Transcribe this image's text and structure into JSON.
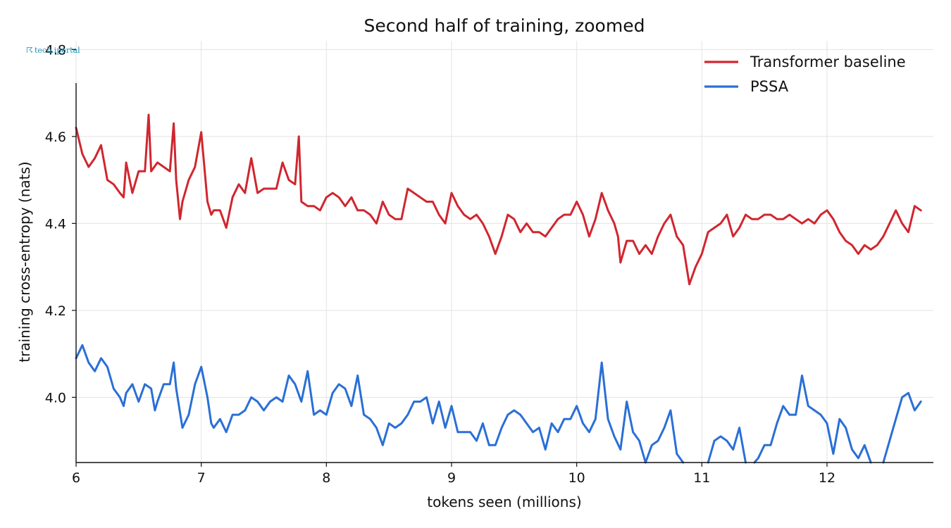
{
  "chart_data": {
    "type": "line",
    "title": "Second half of training, zoomed",
    "xlabel": "tokens seen (millions)",
    "ylabel": "training cross-entropy (nats)",
    "xlim": [
      6.0,
      12.85
    ],
    "ylim": [
      3.85,
      4.82
    ],
    "xticks": [
      6,
      7,
      8,
      9,
      10,
      11,
      12
    ],
    "yticks": [
      4.0,
      4.2,
      4.4,
      4.6,
      4.8
    ],
    "grid": true,
    "legend_position": "top-right",
    "watermark": "tech.iportal",
    "series": [
      {
        "name": "Transformer baseline",
        "color": "#d0262f",
        "points": [
          [
            6.0,
            4.62
          ],
          [
            6.05,
            4.56
          ],
          [
            6.1,
            4.53
          ],
          [
            6.15,
            4.55
          ],
          [
            6.2,
            4.58
          ],
          [
            6.25,
            4.5
          ],
          [
            6.3,
            4.49
          ],
          [
            6.35,
            4.47
          ],
          [
            6.38,
            4.46
          ],
          [
            6.4,
            4.54
          ],
          [
            6.45,
            4.47
          ],
          [
            6.5,
            4.52
          ],
          [
            6.55,
            4.52
          ],
          [
            6.58,
            4.65
          ],
          [
            6.6,
            4.52
          ],
          [
            6.65,
            4.54
          ],
          [
            6.7,
            4.53
          ],
          [
            6.75,
            4.52
          ],
          [
            6.78,
            4.63
          ],
          [
            6.8,
            4.5
          ],
          [
            6.83,
            4.41
          ],
          [
            6.85,
            4.45
          ],
          [
            6.9,
            4.5
          ],
          [
            6.95,
            4.53
          ],
          [
            7.0,
            4.61
          ],
          [
            7.05,
            4.45
          ],
          [
            7.08,
            4.42
          ],
          [
            7.1,
            4.43
          ],
          [
            7.15,
            4.43
          ],
          [
            7.2,
            4.39
          ],
          [
            7.25,
            4.46
          ],
          [
            7.3,
            4.49
          ],
          [
            7.35,
            4.47
          ],
          [
            7.4,
            4.55
          ],
          [
            7.45,
            4.47
          ],
          [
            7.5,
            4.48
          ],
          [
            7.55,
            4.48
          ],
          [
            7.6,
            4.48
          ],
          [
            7.65,
            4.54
          ],
          [
            7.7,
            4.5
          ],
          [
            7.75,
            4.49
          ],
          [
            7.78,
            4.6
          ],
          [
            7.8,
            4.45
          ],
          [
            7.85,
            4.44
          ],
          [
            7.9,
            4.44
          ],
          [
            7.95,
            4.43
          ],
          [
            8.0,
            4.46
          ],
          [
            8.05,
            4.47
          ],
          [
            8.1,
            4.46
          ],
          [
            8.15,
            4.44
          ],
          [
            8.2,
            4.46
          ],
          [
            8.25,
            4.43
          ],
          [
            8.3,
            4.43
          ],
          [
            8.35,
            4.42
          ],
          [
            8.4,
            4.4
          ],
          [
            8.45,
            4.45
          ],
          [
            8.5,
            4.42
          ],
          [
            8.55,
            4.41
          ],
          [
            8.6,
            4.41
          ],
          [
            8.65,
            4.48
          ],
          [
            8.7,
            4.47
          ],
          [
            8.75,
            4.46
          ],
          [
            8.8,
            4.45
          ],
          [
            8.85,
            4.45
          ],
          [
            8.9,
            4.42
          ],
          [
            8.95,
            4.4
          ],
          [
            9.0,
            4.47
          ],
          [
            9.05,
            4.44
          ],
          [
            9.1,
            4.42
          ],
          [
            9.15,
            4.41
          ],
          [
            9.2,
            4.42
          ],
          [
            9.25,
            4.4
          ],
          [
            9.3,
            4.37
          ],
          [
            9.35,
            4.33
          ],
          [
            9.4,
            4.37
          ],
          [
            9.45,
            4.42
          ],
          [
            9.5,
            4.41
          ],
          [
            9.55,
            4.38
          ],
          [
            9.6,
            4.4
          ],
          [
            9.65,
            4.38
          ],
          [
            9.7,
            4.38
          ],
          [
            9.75,
            4.37
          ],
          [
            9.8,
            4.39
          ],
          [
            9.85,
            4.41
          ],
          [
            9.9,
            4.42
          ],
          [
            9.95,
            4.42
          ],
          [
            10.0,
            4.45
          ],
          [
            10.05,
            4.42
          ],
          [
            10.1,
            4.37
          ],
          [
            10.15,
            4.41
          ],
          [
            10.2,
            4.47
          ],
          [
            10.25,
            4.43
          ],
          [
            10.3,
            4.4
          ],
          [
            10.33,
            4.37
          ],
          [
            10.35,
            4.31
          ],
          [
            10.4,
            4.36
          ],
          [
            10.45,
            4.36
          ],
          [
            10.5,
            4.33
          ],
          [
            10.55,
            4.35
          ],
          [
            10.6,
            4.33
          ],
          [
            10.65,
            4.37
          ],
          [
            10.7,
            4.4
          ],
          [
            10.75,
            4.42
          ],
          [
            10.8,
            4.37
          ],
          [
            10.85,
            4.35
          ],
          [
            10.9,
            4.26
          ],
          [
            10.95,
            4.3
          ],
          [
            11.0,
            4.33
          ],
          [
            11.05,
            4.38
          ],
          [
            11.1,
            4.39
          ],
          [
            11.15,
            4.4
          ],
          [
            11.2,
            4.42
          ],
          [
            11.25,
            4.37
          ],
          [
            11.3,
            4.39
          ],
          [
            11.35,
            4.42
          ],
          [
            11.4,
            4.41
          ],
          [
            11.45,
            4.41
          ],
          [
            11.5,
            4.42
          ],
          [
            11.55,
            4.42
          ],
          [
            11.6,
            4.41
          ],
          [
            11.65,
            4.41
          ],
          [
            11.7,
            4.42
          ],
          [
            11.75,
            4.41
          ],
          [
            11.8,
            4.4
          ],
          [
            11.85,
            4.41
          ],
          [
            11.9,
            4.4
          ],
          [
            11.95,
            4.42
          ],
          [
            12.0,
            4.43
          ],
          [
            12.05,
            4.41
          ],
          [
            12.1,
            4.38
          ],
          [
            12.15,
            4.36
          ],
          [
            12.2,
            4.35
          ],
          [
            12.25,
            4.33
          ],
          [
            12.3,
            4.35
          ],
          [
            12.35,
            4.34
          ],
          [
            12.4,
            4.35
          ],
          [
            12.45,
            4.37
          ],
          [
            12.5,
            4.4
          ],
          [
            12.55,
            4.43
          ],
          [
            12.6,
            4.4
          ],
          [
            12.65,
            4.38
          ],
          [
            12.7,
            4.44
          ],
          [
            12.75,
            4.43
          ]
        ]
      },
      {
        "name": "PSSA",
        "color": "#2a6fd6",
        "points": [
          [
            6.0,
            4.09
          ],
          [
            6.05,
            4.12
          ],
          [
            6.1,
            4.08
          ],
          [
            6.15,
            4.06
          ],
          [
            6.2,
            4.09
          ],
          [
            6.25,
            4.07
          ],
          [
            6.3,
            4.02
          ],
          [
            6.35,
            4.0
          ],
          [
            6.38,
            3.98
          ],
          [
            6.4,
            4.01
          ],
          [
            6.45,
            4.03
          ],
          [
            6.5,
            3.99
          ],
          [
            6.55,
            4.03
          ],
          [
            6.6,
            4.02
          ],
          [
            6.63,
            3.97
          ],
          [
            6.65,
            3.99
          ],
          [
            6.7,
            4.03
          ],
          [
            6.75,
            4.03
          ],
          [
            6.78,
            4.08
          ],
          [
            6.8,
            4.02
          ],
          [
            6.85,
            3.93
          ],
          [
            6.9,
            3.96
          ],
          [
            6.95,
            4.03
          ],
          [
            7.0,
            4.07
          ],
          [
            7.05,
            4.0
          ],
          [
            7.08,
            3.94
          ],
          [
            7.1,
            3.93
          ],
          [
            7.15,
            3.95
          ],
          [
            7.2,
            3.92
          ],
          [
            7.25,
            3.96
          ],
          [
            7.3,
            3.96
          ],
          [
            7.35,
            3.97
          ],
          [
            7.4,
            4.0
          ],
          [
            7.45,
            3.99
          ],
          [
            7.5,
            3.97
          ],
          [
            7.55,
            3.99
          ],
          [
            7.6,
            4.0
          ],
          [
            7.65,
            3.99
          ],
          [
            7.7,
            4.05
          ],
          [
            7.75,
            4.03
          ],
          [
            7.8,
            3.99
          ],
          [
            7.85,
            4.06
          ],
          [
            7.9,
            3.96
          ],
          [
            7.95,
            3.97
          ],
          [
            8.0,
            3.96
          ],
          [
            8.05,
            4.01
          ],
          [
            8.1,
            4.03
          ],
          [
            8.15,
            4.02
          ],
          [
            8.2,
            3.98
          ],
          [
            8.25,
            4.05
          ],
          [
            8.3,
            3.96
          ],
          [
            8.35,
            3.95
          ],
          [
            8.4,
            3.93
          ],
          [
            8.45,
            3.89
          ],
          [
            8.5,
            3.94
          ],
          [
            8.55,
            3.93
          ],
          [
            8.6,
            3.94
          ],
          [
            8.65,
            3.96
          ],
          [
            8.7,
            3.99
          ],
          [
            8.75,
            3.99
          ],
          [
            8.8,
            4.0
          ],
          [
            8.85,
            3.94
          ],
          [
            8.9,
            3.99
          ],
          [
            8.95,
            3.93
          ],
          [
            9.0,
            3.98
          ],
          [
            9.05,
            3.92
          ],
          [
            9.1,
            3.92
          ],
          [
            9.15,
            3.92
          ],
          [
            9.2,
            3.9
          ],
          [
            9.25,
            3.94
          ],
          [
            9.3,
            3.89
          ],
          [
            9.35,
            3.89
          ],
          [
            9.4,
            3.93
          ],
          [
            9.45,
            3.96
          ],
          [
            9.5,
            3.97
          ],
          [
            9.55,
            3.96
          ],
          [
            9.6,
            3.94
          ],
          [
            9.65,
            3.92
          ],
          [
            9.7,
            3.93
          ],
          [
            9.75,
            3.88
          ],
          [
            9.8,
            3.94
          ],
          [
            9.85,
            3.92
          ],
          [
            9.9,
            3.95
          ],
          [
            9.95,
            3.95
          ],
          [
            10.0,
            3.98
          ],
          [
            10.05,
            3.94
          ],
          [
            10.1,
            3.92
          ],
          [
            10.15,
            3.95
          ],
          [
            10.2,
            4.08
          ],
          [
            10.25,
            3.95
          ],
          [
            10.3,
            3.91
          ],
          [
            10.35,
            3.88
          ],
          [
            10.4,
            3.99
          ],
          [
            10.45,
            3.92
          ],
          [
            10.5,
            3.9
          ],
          [
            10.55,
            3.85
          ],
          [
            10.6,
            3.89
          ],
          [
            10.65,
            3.9
          ],
          [
            10.7,
            3.93
          ],
          [
            10.75,
            3.97
          ],
          [
            10.8,
            3.87
          ],
          [
            10.85,
            3.85
          ]
        ]
      },
      {
        "name": "",
        "color": "#2a6fd6",
        "points": [
          [
            11.05,
            3.85
          ],
          [
            11.1,
            3.9
          ],
          [
            11.15,
            3.91
          ],
          [
            11.2,
            3.9
          ],
          [
            11.25,
            3.88
          ],
          [
            11.3,
            3.93
          ],
          [
            11.35,
            3.85
          ]
        ]
      },
      {
        "name": "",
        "color": "#2a6fd6",
        "points": [
          [
            11.42,
            3.85
          ],
          [
            11.45,
            3.86
          ],
          [
            11.5,
            3.89
          ],
          [
            11.55,
            3.89
          ],
          [
            11.6,
            3.94
          ],
          [
            11.65,
            3.98
          ],
          [
            11.7,
            3.96
          ],
          [
            11.75,
            3.96
          ],
          [
            11.8,
            4.05
          ],
          [
            11.85,
            3.98
          ],
          [
            11.9,
            3.97
          ],
          [
            11.95,
            3.96
          ],
          [
            12.0,
            3.94
          ],
          [
            12.05,
            3.87
          ],
          [
            12.1,
            3.95
          ],
          [
            12.15,
            3.93
          ],
          [
            12.2,
            3.88
          ],
          [
            12.25,
            3.86
          ],
          [
            12.3,
            3.89
          ],
          [
            12.35,
            3.85
          ]
        ]
      },
      {
        "name": "",
        "color": "#2a6fd6",
        "points": [
          [
            12.45,
            3.85
          ],
          [
            12.5,
            3.9
          ],
          [
            12.55,
            3.95
          ],
          [
            12.6,
            4.0
          ],
          [
            12.65,
            4.01
          ],
          [
            12.7,
            3.97
          ],
          [
            12.75,
            3.99
          ]
        ]
      }
    ]
  }
}
